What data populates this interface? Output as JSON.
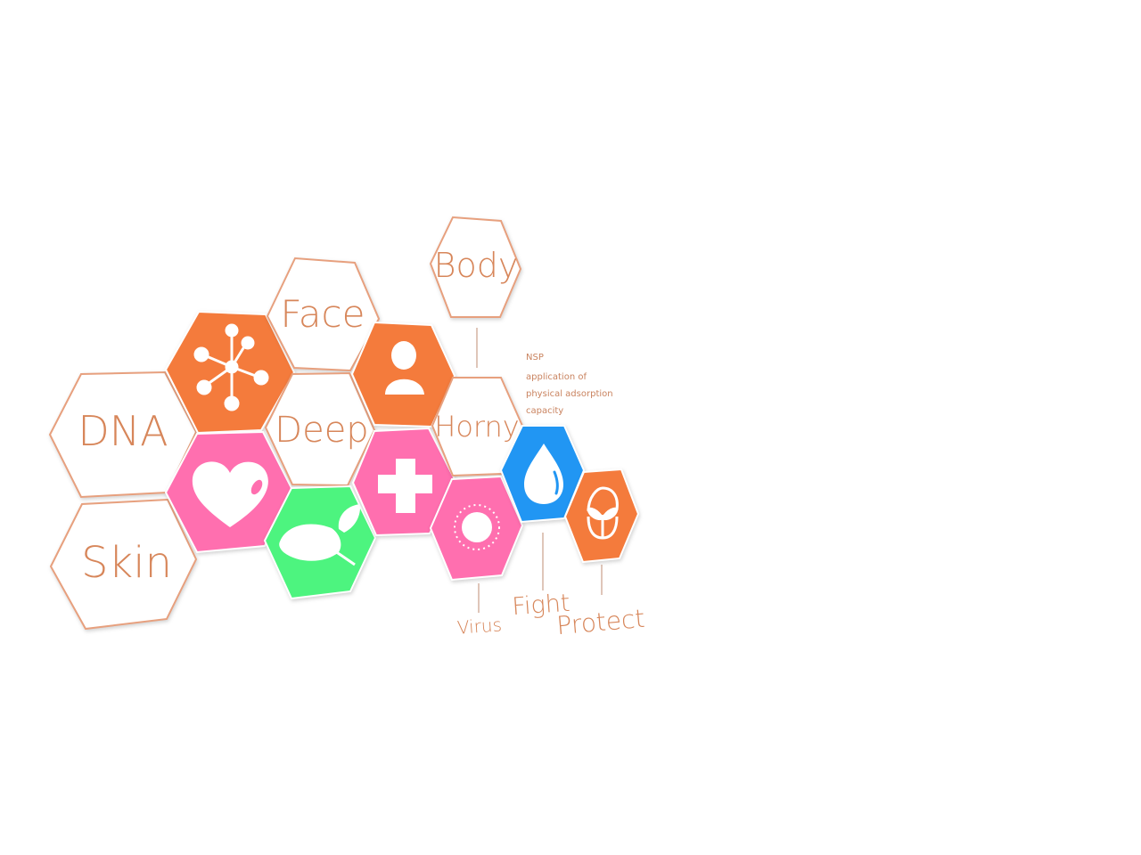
{
  "colors": {
    "orange": "#f47b3c",
    "pink": "#ff6faf",
    "green": "#4df47f",
    "blue": "#2196f3",
    "outline": "#e7a07e",
    "text": "#d7865a",
    "icon": "#ffffff"
  },
  "hexagons": [
    {
      "id": "dna",
      "label": "DNA"
    },
    {
      "id": "skin",
      "label": "Skin"
    },
    {
      "id": "molecule",
      "icon": "molecule-icon"
    },
    {
      "id": "heart",
      "icon": "heart-icon"
    },
    {
      "id": "face",
      "label": "Face"
    },
    {
      "id": "deep",
      "label": "Deep"
    },
    {
      "id": "leaf",
      "icon": "leaf-icon"
    },
    {
      "id": "person",
      "icon": "person-icon"
    },
    {
      "id": "cross",
      "icon": "cross-icon"
    },
    {
      "id": "body",
      "label": "Body"
    },
    {
      "id": "horny",
      "label": "Horny"
    },
    {
      "id": "virus",
      "icon": "virus-icon"
    },
    {
      "id": "drop",
      "icon": "water-drop-icon"
    },
    {
      "id": "sprout",
      "icon": "sprout-icon"
    }
  ],
  "callouts": {
    "virus": "Virus",
    "fight": "Fight",
    "protect": "Protect"
  },
  "note": {
    "line1": "NSP",
    "line2": "application of",
    "line3": "physical adsorption",
    "line4": "capacity"
  }
}
